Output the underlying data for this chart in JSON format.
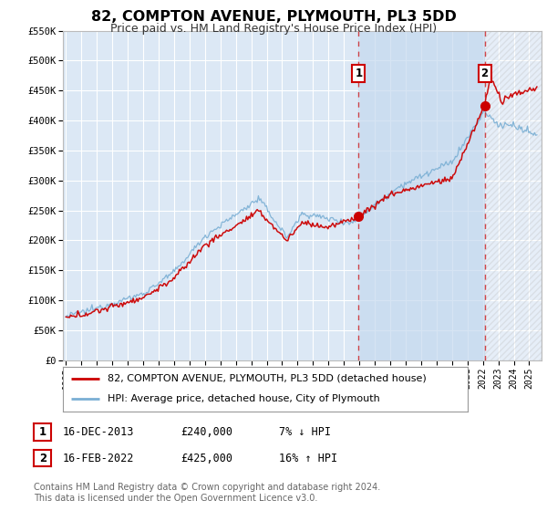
{
  "title": "82, COMPTON AVENUE, PLYMOUTH, PL3 5DD",
  "subtitle": "Price paid vs. HM Land Registry's House Price Index (HPI)",
  "title_fontsize": 11.5,
  "subtitle_fontsize": 9,
  "bg_color": "#ffffff",
  "plot_bg_color": "#dce8f5",
  "grid_color": "#ffffff",
  "shade_color": "#c5d9ef",
  "red_line_color": "#cc0000",
  "blue_line_color": "#7aafd4",
  "ylim": [
    0,
    550000
  ],
  "yticks": [
    0,
    50000,
    100000,
    150000,
    200000,
    250000,
    300000,
    350000,
    400000,
    450000,
    500000,
    550000
  ],
  "ytick_labels": [
    "£0",
    "£50K",
    "£100K",
    "£150K",
    "£200K",
    "£250K",
    "£300K",
    "£350K",
    "£400K",
    "£450K",
    "£500K",
    "£550K"
  ],
  "xlim_start": 1994.8,
  "xlim_end": 2025.8,
  "xtick_years": [
    1995,
    1996,
    1997,
    1998,
    1999,
    2000,
    2001,
    2002,
    2003,
    2004,
    2005,
    2006,
    2007,
    2008,
    2009,
    2010,
    2011,
    2012,
    2013,
    2014,
    2015,
    2016,
    2017,
    2018,
    2019,
    2020,
    2021,
    2022,
    2023,
    2024,
    2025
  ],
  "marker1_x": 2013.96,
  "marker1_y": 240000,
  "marker2_x": 2022.12,
  "marker2_y": 425000,
  "vline1_x": 2013.96,
  "vline2_x": 2022.12,
  "legend_label_red": "82, COMPTON AVENUE, PLYMOUTH, PL3 5DD (detached house)",
  "legend_label_blue": "HPI: Average price, detached house, City of Plymouth",
  "annot1_label": "1",
  "annot2_label": "2",
  "table_row1": [
    "1",
    "16-DEC-2013",
    "£240,000",
    "7% ↓ HPI"
  ],
  "table_row2": [
    "2",
    "16-FEB-2022",
    "£425,000",
    "16% ↑ HPI"
  ],
  "footnote": "Contains HM Land Registry data © Crown copyright and database right 2024.\nThis data is licensed under the Open Government Licence v3.0.",
  "footnote_fontsize": 7,
  "legend_fontsize": 8,
  "table_fontsize": 8.5
}
